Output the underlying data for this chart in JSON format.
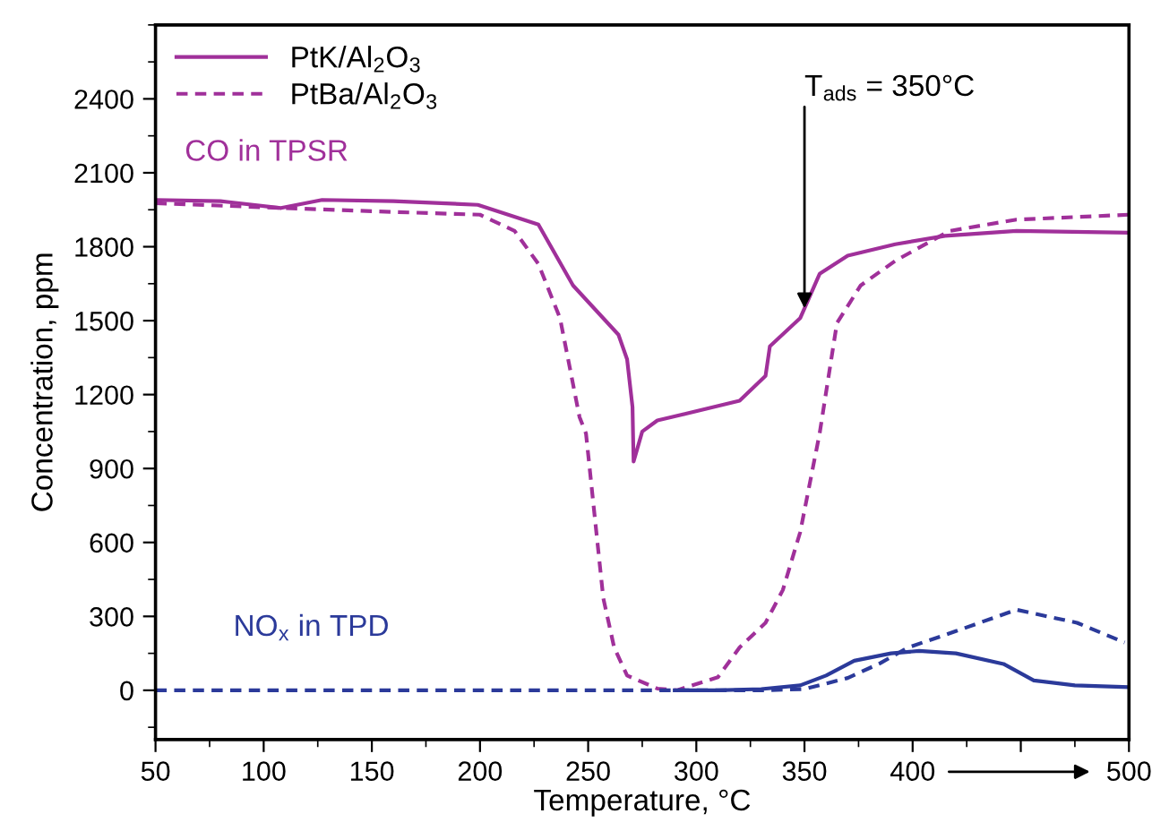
{
  "chart_data": {
    "type": "line",
    "xlabel": "Temperature, °C",
    "ylabel": "Concentration, ppm",
    "xlim": [
      50,
      500
    ],
    "ylim": [
      -200,
      2700
    ],
    "xticks": [
      50,
      100,
      150,
      200,
      250,
      300,
      350,
      400,
      {
        "value": 450,
        "label": null
      },
      500
    ],
    "yticks": [
      0,
      300,
      600,
      900,
      1200,
      1500,
      1800,
      2100,
      2400
    ],
    "grid": false,
    "legend": "top left",
    "marker": "none",
    "annotations": [
      "CO in TPSR",
      "NO$_{x}$ in TPD",
      {
        "text": "T$_{ads}$ = 350°C",
        "x": 350,
        "y": 1550
      }
    ],
    "series": [
      {
        "name": "PtK/Al$_{2}$O$_{3}$",
        "color": "#a0309a",
        "line_style": "solid",
        "x": [
          50,
          80,
          108,
          127,
          160,
          199,
          227,
          243,
          264,
          268,
          270.5,
          271,
          275,
          282,
          320,
          332,
          334,
          348,
          357,
          370,
          392,
          415,
          448,
          500
        ],
        "values": [
          1990,
          1985,
          1957,
          1990,
          1985,
          1970,
          1890,
          1643,
          1443,
          1343,
          1150,
          928,
          1050,
          1095,
          1175,
          1276,
          1396,
          1510,
          1690,
          1764,
          1810,
          1844,
          1864,
          1857
        ]
      },
      {
        "name": "PtBa/Al$_{2}$O$_{3}$",
        "color": "#a0309a",
        "line_style": "dashed",
        "x": [
          50,
          100,
          150,
          200,
          216,
          227,
          237,
          246,
          249,
          257,
          262,
          268,
          282,
          291,
          310,
          320,
          332,
          340,
          348,
          357,
          365,
          376,
          392,
          417,
          448,
          500
        ],
        "values": [
          1977,
          1960,
          1944,
          1930,
          1864,
          1730,
          1510,
          1109,
          1042,
          374,
          174,
          60,
          7,
          0,
          53,
          174,
          274,
          407,
          641,
          1042,
          1490,
          1643,
          1743,
          1864,
          1910,
          1930
        ]
      },
      {
        "color": "#2b3a9a",
        "line_style": "solid",
        "x": [
          290,
          310,
          330,
          348,
          360,
          373,
          390,
          403,
          420,
          442,
          456,
          475,
          500
        ],
        "values": [
          0,
          0,
          5,
          20,
          60,
          120,
          150,
          160,
          150,
          107,
          40,
          20,
          13
        ]
      },
      {
        "color": "#2b3a9a",
        "line_style": "dashed",
        "x": [
          50,
          150,
          250,
          300,
          330,
          350,
          370,
          385,
          398,
          420,
          448,
          476,
          498
        ],
        "values": [
          0,
          0,
          0,
          0,
          0,
          5,
          50,
          110,
          174,
          240,
          327,
          274,
          194
        ]
      }
    ]
  }
}
